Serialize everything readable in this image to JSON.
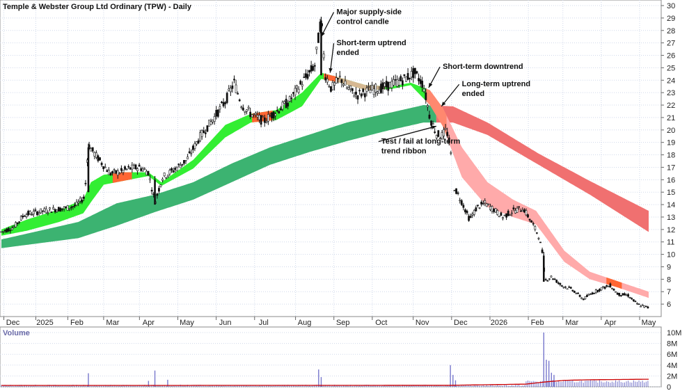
{
  "title": "Temple & Webster Group Ltd Ordinary (TPW) - Daily",
  "colors": {
    "long_ribbon_up": "#3cb371",
    "long_ribbon_down": "#f07070",
    "short_ribbon_up": "#33ee33",
    "short_ribbon_down": "#ff6633",
    "short_ribbon_down_light": "#ffaaaa",
    "candle": "#111111",
    "volume_bar": "#7777cc",
    "volume_avg": "#cc0000",
    "grid": "#cfd8ea"
  },
  "chart_data": [
    {
      "type": "candlestick",
      "ylim": [
        5,
        30
      ],
      "y_ticks": [
        "6",
        "7",
        "8",
        "9",
        "10",
        "11",
        "12",
        "13",
        "14",
        "15",
        "16",
        "17",
        "18",
        "19",
        "20",
        "21",
        "22",
        "23",
        "24",
        "25",
        "26",
        "27",
        "28",
        "29",
        "30"
      ],
      "x_labels": [
        "Dec",
        "2025",
        "Feb",
        "Mar",
        "Apr",
        "May",
        "Jun",
        "Jul",
        "Aug",
        "Sep",
        "Oct",
        "Nov",
        "Dec",
        "2026",
        "Feb",
        "Mar",
        "Apr",
        "May"
      ],
      "x_label_days": [
        9,
        34,
        59,
        87,
        115,
        145,
        175,
        205,
        237,
        267,
        297,
        329,
        359,
        389,
        419,
        446,
        476,
        506
      ],
      "price_path": [
        [
          0,
          11.8
        ],
        [
          10,
          12.2
        ],
        [
          18,
          13.2
        ],
        [
          28,
          13.4
        ],
        [
          40,
          13.6
        ],
        [
          50,
          13.7
        ],
        [
          58,
          13.9
        ],
        [
          65,
          14.6
        ],
        [
          68,
          18.8
        ],
        [
          72,
          18.2
        ],
        [
          78,
          17.4
        ],
        [
          85,
          16.5
        ],
        [
          92,
          16.6
        ],
        [
          100,
          16.9
        ],
        [
          108,
          17.0
        ],
        [
          115,
          16.6
        ],
        [
          120,
          14.2
        ],
        [
          126,
          16.2
        ],
        [
          135,
          16.8
        ],
        [
          145,
          17.6
        ],
        [
          155,
          19.4
        ],
        [
          165,
          20.8
        ],
        [
          175,
          22.3
        ],
        [
          182,
          23.8
        ],
        [
          188,
          22.0
        ],
        [
          195,
          21.3
        ],
        [
          205,
          20.7
        ],
        [
          215,
          21.5
        ],
        [
          225,
          22.3
        ],
        [
          235,
          23.8
        ],
        [
          245,
          25.2
        ],
        [
          250,
          29.0
        ],
        [
          253,
          24.5
        ],
        [
          258,
          23.3
        ],
        [
          265,
          24.2
        ],
        [
          270,
          23.4
        ],
        [
          278,
          22.8
        ],
        [
          288,
          23.2
        ],
        [
          298,
          23.4
        ],
        [
          306,
          23.7
        ],
        [
          315,
          24.1
        ],
        [
          323,
          24.6
        ],
        [
          330,
          23.6
        ],
        [
          335,
          21.0
        ],
        [
          340,
          19.7
        ],
        [
          344,
          19.5
        ],
        [
          348,
          20.0
        ],
        [
          351,
          18.6
        ],
        [
          353,
          15.6
        ],
        [
          360,
          14.2
        ],
        [
          366,
          12.8
        ],
        [
          372,
          13.8
        ],
        [
          378,
          14.1
        ],
        [
          385,
          13.6
        ],
        [
          392,
          13.0
        ],
        [
          400,
          13.5
        ],
        [
          408,
          13.7
        ],
        [
          415,
          12.5
        ],
        [
          420,
          11.5
        ],
        [
          423,
          10.1
        ],
        [
          425,
          7.9
        ],
        [
          430,
          8.2
        ],
        [
          438,
          7.5
        ],
        [
          446,
          7.2
        ],
        [
          455,
          6.4
        ],
        [
          462,
          6.9
        ],
        [
          470,
          7.3
        ],
        [
          476,
          7.5
        ],
        [
          482,
          6.8
        ],
        [
          490,
          6.7
        ],
        [
          497,
          6.0
        ],
        [
          506,
          5.7
        ]
      ],
      "long_ribbon": {
        "upper": [
          [
            0,
            11.2
          ],
          [
            60,
            12.6
          ],
          [
            90,
            14.1
          ],
          [
            120,
            14.8
          ],
          [
            150,
            15.8
          ],
          [
            180,
            17.3
          ],
          [
            210,
            18.6
          ],
          [
            240,
            19.6
          ],
          [
            270,
            20.6
          ],
          [
            300,
            21.3
          ],
          [
            330,
            22.0
          ],
          [
            353,
            21.9
          ],
          [
            380,
            20.6
          ],
          [
            420,
            18.1
          ],
          [
            460,
            15.9
          ],
          [
            506,
            13.5
          ]
        ],
        "lower": [
          [
            0,
            10.5
          ],
          [
            60,
            11.3
          ],
          [
            90,
            12.3
          ],
          [
            120,
            13.4
          ],
          [
            150,
            14.4
          ],
          [
            180,
            15.8
          ],
          [
            210,
            17.2
          ],
          [
            240,
            18.2
          ],
          [
            270,
            19.1
          ],
          [
            300,
            19.9
          ],
          [
            330,
            20.6
          ],
          [
            353,
            20.6
          ],
          [
            380,
            19.6
          ],
          [
            420,
            17.2
          ],
          [
            460,
            14.8
          ],
          [
            506,
            11.8
          ]
        ],
        "turn_day": 340
      },
      "short_ribbon": {
        "upper": [
          [
            0,
            12.0
          ],
          [
            20,
            12.8
          ],
          [
            45,
            13.6
          ],
          [
            64,
            14.4
          ],
          [
            70,
            15.8
          ],
          [
            80,
            16.4
          ],
          [
            95,
            16.6
          ],
          [
            115,
            16.6
          ],
          [
            125,
            15.8
          ],
          [
            150,
            17.6
          ],
          [
            175,
            20.4
          ],
          [
            195,
            21.3
          ],
          [
            215,
            21.6
          ],
          [
            235,
            23.0
          ],
          [
            250,
            24.6
          ],
          [
            265,
            24.2
          ],
          [
            285,
            23.6
          ],
          [
            305,
            23.5
          ],
          [
            320,
            23.8
          ],
          [
            335,
            23.2
          ],
          [
            345,
            21.8
          ],
          [
            360,
            18.6
          ],
          [
            380,
            15.8
          ],
          [
            400,
            14.4
          ],
          [
            418,
            13.5
          ],
          [
            440,
            10.3
          ],
          [
            460,
            8.6
          ],
          [
            480,
            7.9
          ],
          [
            506,
            7.0
          ]
        ],
        "lower": [
          [
            0,
            11.5
          ],
          [
            20,
            11.9
          ],
          [
            45,
            12.6
          ],
          [
            64,
            13.3
          ],
          [
            70,
            14.2
          ],
          [
            80,
            15.6
          ],
          [
            95,
            15.9
          ],
          [
            115,
            16.3
          ],
          [
            125,
            15.5
          ],
          [
            150,
            16.9
          ],
          [
            175,
            19.4
          ],
          [
            195,
            20.6
          ],
          [
            215,
            20.8
          ],
          [
            235,
            21.9
          ],
          [
            250,
            24.1
          ],
          [
            265,
            23.8
          ],
          [
            285,
            23.2
          ],
          [
            305,
            23.3
          ],
          [
            320,
            23.6
          ],
          [
            335,
            22.0
          ],
          [
            345,
            20.3
          ],
          [
            360,
            16.2
          ],
          [
            380,
            13.8
          ],
          [
            400,
            13.0
          ],
          [
            418,
            12.4
          ],
          [
            440,
            9.4
          ],
          [
            460,
            8.0
          ],
          [
            480,
            7.4
          ],
          [
            506,
            6.5
          ]
        ],
        "orange_segments": [
          [
            87,
            102
          ],
          [
            196,
            212
          ],
          [
            252,
            262
          ]
        ],
        "dark_down_segments": [
          [
            473,
            485
          ]
        ]
      },
      "annotations": [
        {
          "text": "Major supply-side\ncontrol candle",
          "day": 262,
          "price": 29.3,
          "arrow_to_day": 250,
          "arrow_to_price": 27.5
        },
        {
          "text": "Short-term uptrend\nended",
          "day": 262,
          "price": 26.8,
          "arrow_to_day": 257,
          "arrow_to_price": 24.6
        },
        {
          "text": "Short-term downtrend",
          "day": 345,
          "price": 24.9,
          "arrow_to_day": 334,
          "arrow_to_price": 23.4
        },
        {
          "text": "Long-term uptrend\nended",
          "day": 360,
          "price": 23.5,
          "arrow_to_day": 344,
          "arrow_to_price": 21.9
        },
        {
          "text": "Test / fail at long-term\ntrend ribbon",
          "day": 297,
          "price": 18.9,
          "arrow_to_day": 340,
          "arrow_to_price": 20.3
        }
      ]
    },
    {
      "type": "bar",
      "title": "Volume",
      "ylim": [
        0,
        10000000
      ],
      "y_ticks": [
        "0",
        "2M",
        "4M",
        "6M",
        "8M",
        "10M"
      ],
      "spikes": [
        [
          68,
          2500000
        ],
        [
          120,
          3000000
        ],
        [
          115,
          1100000
        ],
        [
          130,
          1300000
        ],
        [
          248,
          3200000
        ],
        [
          250,
          1800000
        ],
        [
          351,
          4000000
        ],
        [
          353,
          2200000
        ],
        [
          355,
          1200000
        ],
        [
          424,
          10000000
        ],
        [
          426,
          5000000
        ],
        [
          428,
          4800000
        ],
        [
          430,
          2600000
        ],
        [
          432,
          2200000
        ]
      ],
      "baseline_volume": 250000,
      "avg_path": [
        [
          0,
          250000
        ],
        [
          350,
          280000
        ],
        [
          410,
          500000
        ],
        [
          425,
          900000
        ],
        [
          440,
          1200000
        ],
        [
          460,
          1300000
        ],
        [
          506,
          1400000
        ]
      ]
    }
  ]
}
